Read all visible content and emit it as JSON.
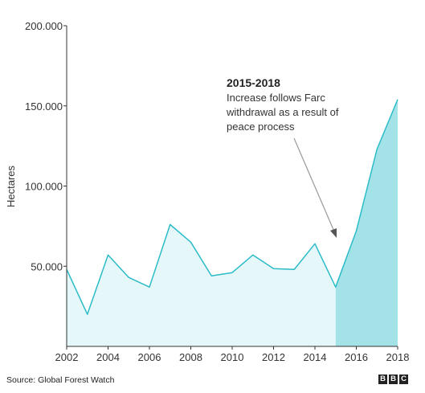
{
  "chart_data": {
    "type": "area",
    "x": [
      2002,
      2003,
      2004,
      2005,
      2006,
      2007,
      2008,
      2009,
      2010,
      2011,
      2012,
      2013,
      2014,
      2015,
      2016,
      2017,
      2018
    ],
    "values": [
      48000,
      20000,
      57000,
      43000,
      37000,
      76000,
      65000,
      44000,
      46000,
      57000,
      48500,
      48000,
      64000,
      37000,
      72000,
      123000,
      154000
    ],
    "xlim": [
      2002,
      2018
    ],
    "ylim": [
      0,
      200000
    ],
    "yticks": [
      50000,
      100000,
      150000,
      200000
    ],
    "ytick_labels": [
      "50.000",
      "100.000",
      "150.000",
      "200.000"
    ],
    "xticks": [
      2002,
      2004,
      2006,
      2008,
      2010,
      2012,
      2014,
      2016,
      2018
    ],
    "xtick_labels": [
      "2002",
      "2004",
      "2006",
      "2008",
      "2010",
      "2012",
      "2014",
      "2016",
      "2018"
    ],
    "ylabel": "Hectares",
    "highlight_range": [
      2015,
      2018
    ],
    "annotation": {
      "title": "2015-2018",
      "lines": [
        "Increase follows Farc",
        "withdrawal as a result of",
        "peace process"
      ]
    },
    "colors": {
      "line": "#2bbcc8",
      "fill_light": "#e6f7f9",
      "fill_highlight": "#a3e3e8",
      "arrow": "#999999"
    },
    "grid": false
  },
  "footer": {
    "source": "Source: Global Forest Watch",
    "logo_letters": [
      "B",
      "B",
      "C"
    ]
  }
}
